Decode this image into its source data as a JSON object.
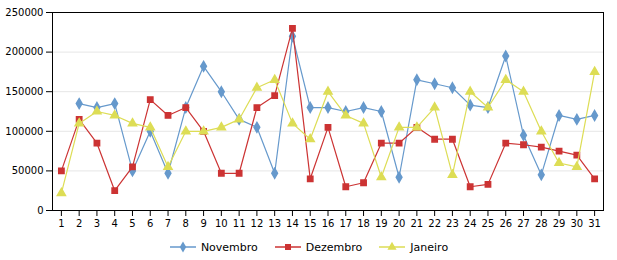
{
  "chart_data": {
    "type": "line",
    "x": [
      1,
      2,
      3,
      4,
      5,
      6,
      7,
      8,
      9,
      10,
      11,
      12,
      13,
      14,
      15,
      16,
      17,
      18,
      19,
      20,
      21,
      22,
      23,
      24,
      25,
      26,
      27,
      28,
      29,
      30,
      31
    ],
    "series": [
      {
        "name": "Novembro",
        "color": "#6699cc",
        "marker": "diamond",
        "values": [
          null,
          135000,
          130000,
          135000,
          50000,
          100000,
          47000,
          130000,
          182000,
          150000,
          115000,
          105000,
          47000,
          220000,
          130000,
          130000,
          125000,
          130000,
          125000,
          42000,
          165000,
          160000,
          155000,
          133000,
          130000,
          195000,
          95000,
          45000,
          120000,
          115000,
          120000
        ]
      },
      {
        "name": "Dezembro",
        "color": "#cc3333",
        "marker": "square",
        "values": [
          50000,
          115000,
          85000,
          25000,
          55000,
          140000,
          120000,
          130000,
          100000,
          47000,
          47000,
          130000,
          145000,
          230000,
          40000,
          105000,
          30000,
          35000,
          85000,
          85000,
          105000,
          90000,
          90000,
          30000,
          33000,
          85000,
          83000,
          80000,
          75000,
          70000,
          40000
        ]
      },
      {
        "name": "Janeiro",
        "color": "#dddd55",
        "marker": "triangle",
        "values": [
          22000,
          110000,
          125000,
          120000,
          110000,
          105000,
          55000,
          100000,
          100000,
          105000,
          115000,
          155000,
          165000,
          110000,
          90000,
          150000,
          120000,
          110000,
          42000,
          105000,
          105000,
          130000,
          45000,
          150000,
          130000,
          165000,
          150000,
          100000,
          60000,
          55000,
          175000
        ]
      }
    ],
    "xlim": [
      0.5,
      31.5
    ],
    "xticks": [
      1,
      2,
      3,
      4,
      5,
      6,
      7,
      8,
      9,
      10,
      11,
      12,
      13,
      14,
      15,
      16,
      17,
      18,
      19,
      20,
      21,
      22,
      23,
      24,
      25,
      26,
      27,
      28,
      29,
      30,
      31
    ],
    "ylim": [
      0,
      250000
    ],
    "yticks": [
      0,
      50000,
      100000,
      150000,
      200000,
      250000
    ],
    "grid": true,
    "legend": "bottom"
  }
}
